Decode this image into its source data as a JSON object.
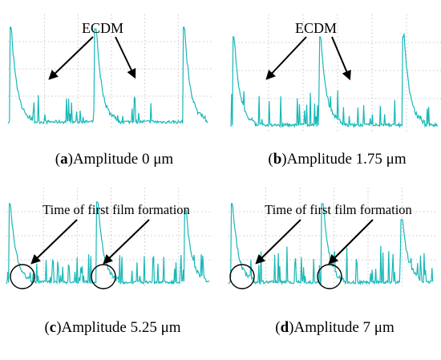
{
  "chart_data": [
    {
      "type": "line",
      "panel_letter": "a",
      "caption": "Amplitude 0 μm",
      "annotation": "ECDM",
      "line_color": "#19b8b8",
      "grid": true
    },
    {
      "type": "line",
      "panel_letter": "b",
      "caption": "Amplitude 1.75 μm",
      "annotation": "ECDM",
      "line_color": "#19b8b8",
      "grid": true
    },
    {
      "type": "line",
      "panel_letter": "c",
      "caption": "Amplitude 5.25 μm",
      "annotation": "Time of first film formation",
      "line_color": "#19b8b8",
      "grid": true
    },
    {
      "type": "line",
      "panel_letter": "d",
      "caption": "Amplitude 7 μm",
      "annotation": "Time of first film formation",
      "line_color": "#19b8b8",
      "grid": true
    }
  ]
}
